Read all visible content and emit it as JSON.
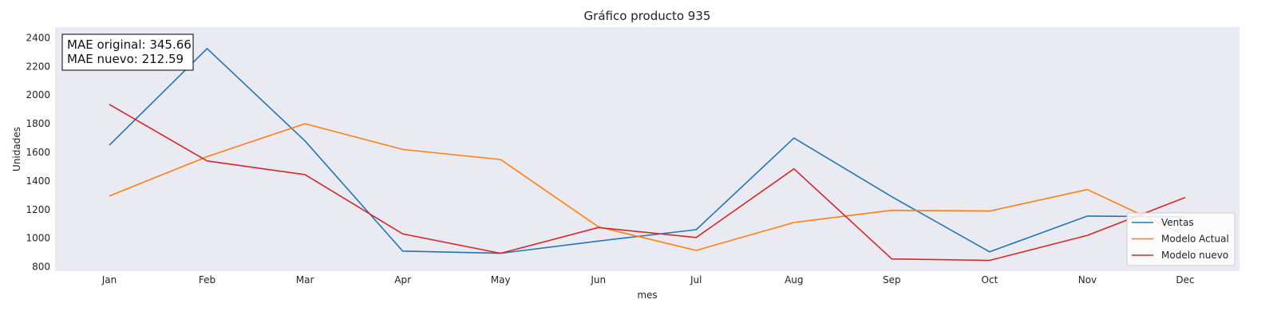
{
  "chart_data": {
    "type": "line",
    "title": "Gráfico producto 935",
    "xlabel": "mes",
    "ylabel": "Unidades",
    "categories": [
      "Jan",
      "Feb",
      "Mar",
      "Apr",
      "May",
      "Jun",
      "Jul",
      "Aug",
      "Sep",
      "Oct",
      "Nov",
      "Dec"
    ],
    "yticks": [
      800,
      1000,
      1200,
      1400,
      1600,
      1800,
      2000,
      2200,
      2400
    ],
    "ylim": [
      770,
      2475
    ],
    "grid": false,
    "legend_position": "bottom-right",
    "series": [
      {
        "name": "Ventas",
        "color": "#1f77b4",
        "values": [
          1650,
          2325,
          1680,
          910,
          895,
          980,
          1060,
          1700,
          1290,
          905,
          1155,
          1150
        ]
      },
      {
        "name": "Modelo Actual",
        "color": "#ff7f0e",
        "values": [
          1295,
          1570,
          1800,
          1620,
          1550,
          1080,
          915,
          1110,
          1195,
          1190,
          1340,
          1020
        ]
      },
      {
        "name": "Modelo nuevo",
        "color": "#d62728",
        "values": [
          1935,
          1540,
          1445,
          1030,
          895,
          1075,
          1005,
          1485,
          855,
          845,
          1020,
          1285
        ]
      }
    ],
    "annotation": {
      "lines": [
        "MAE original: 345.66",
        "MAE nuevo: 212.59"
      ]
    }
  }
}
